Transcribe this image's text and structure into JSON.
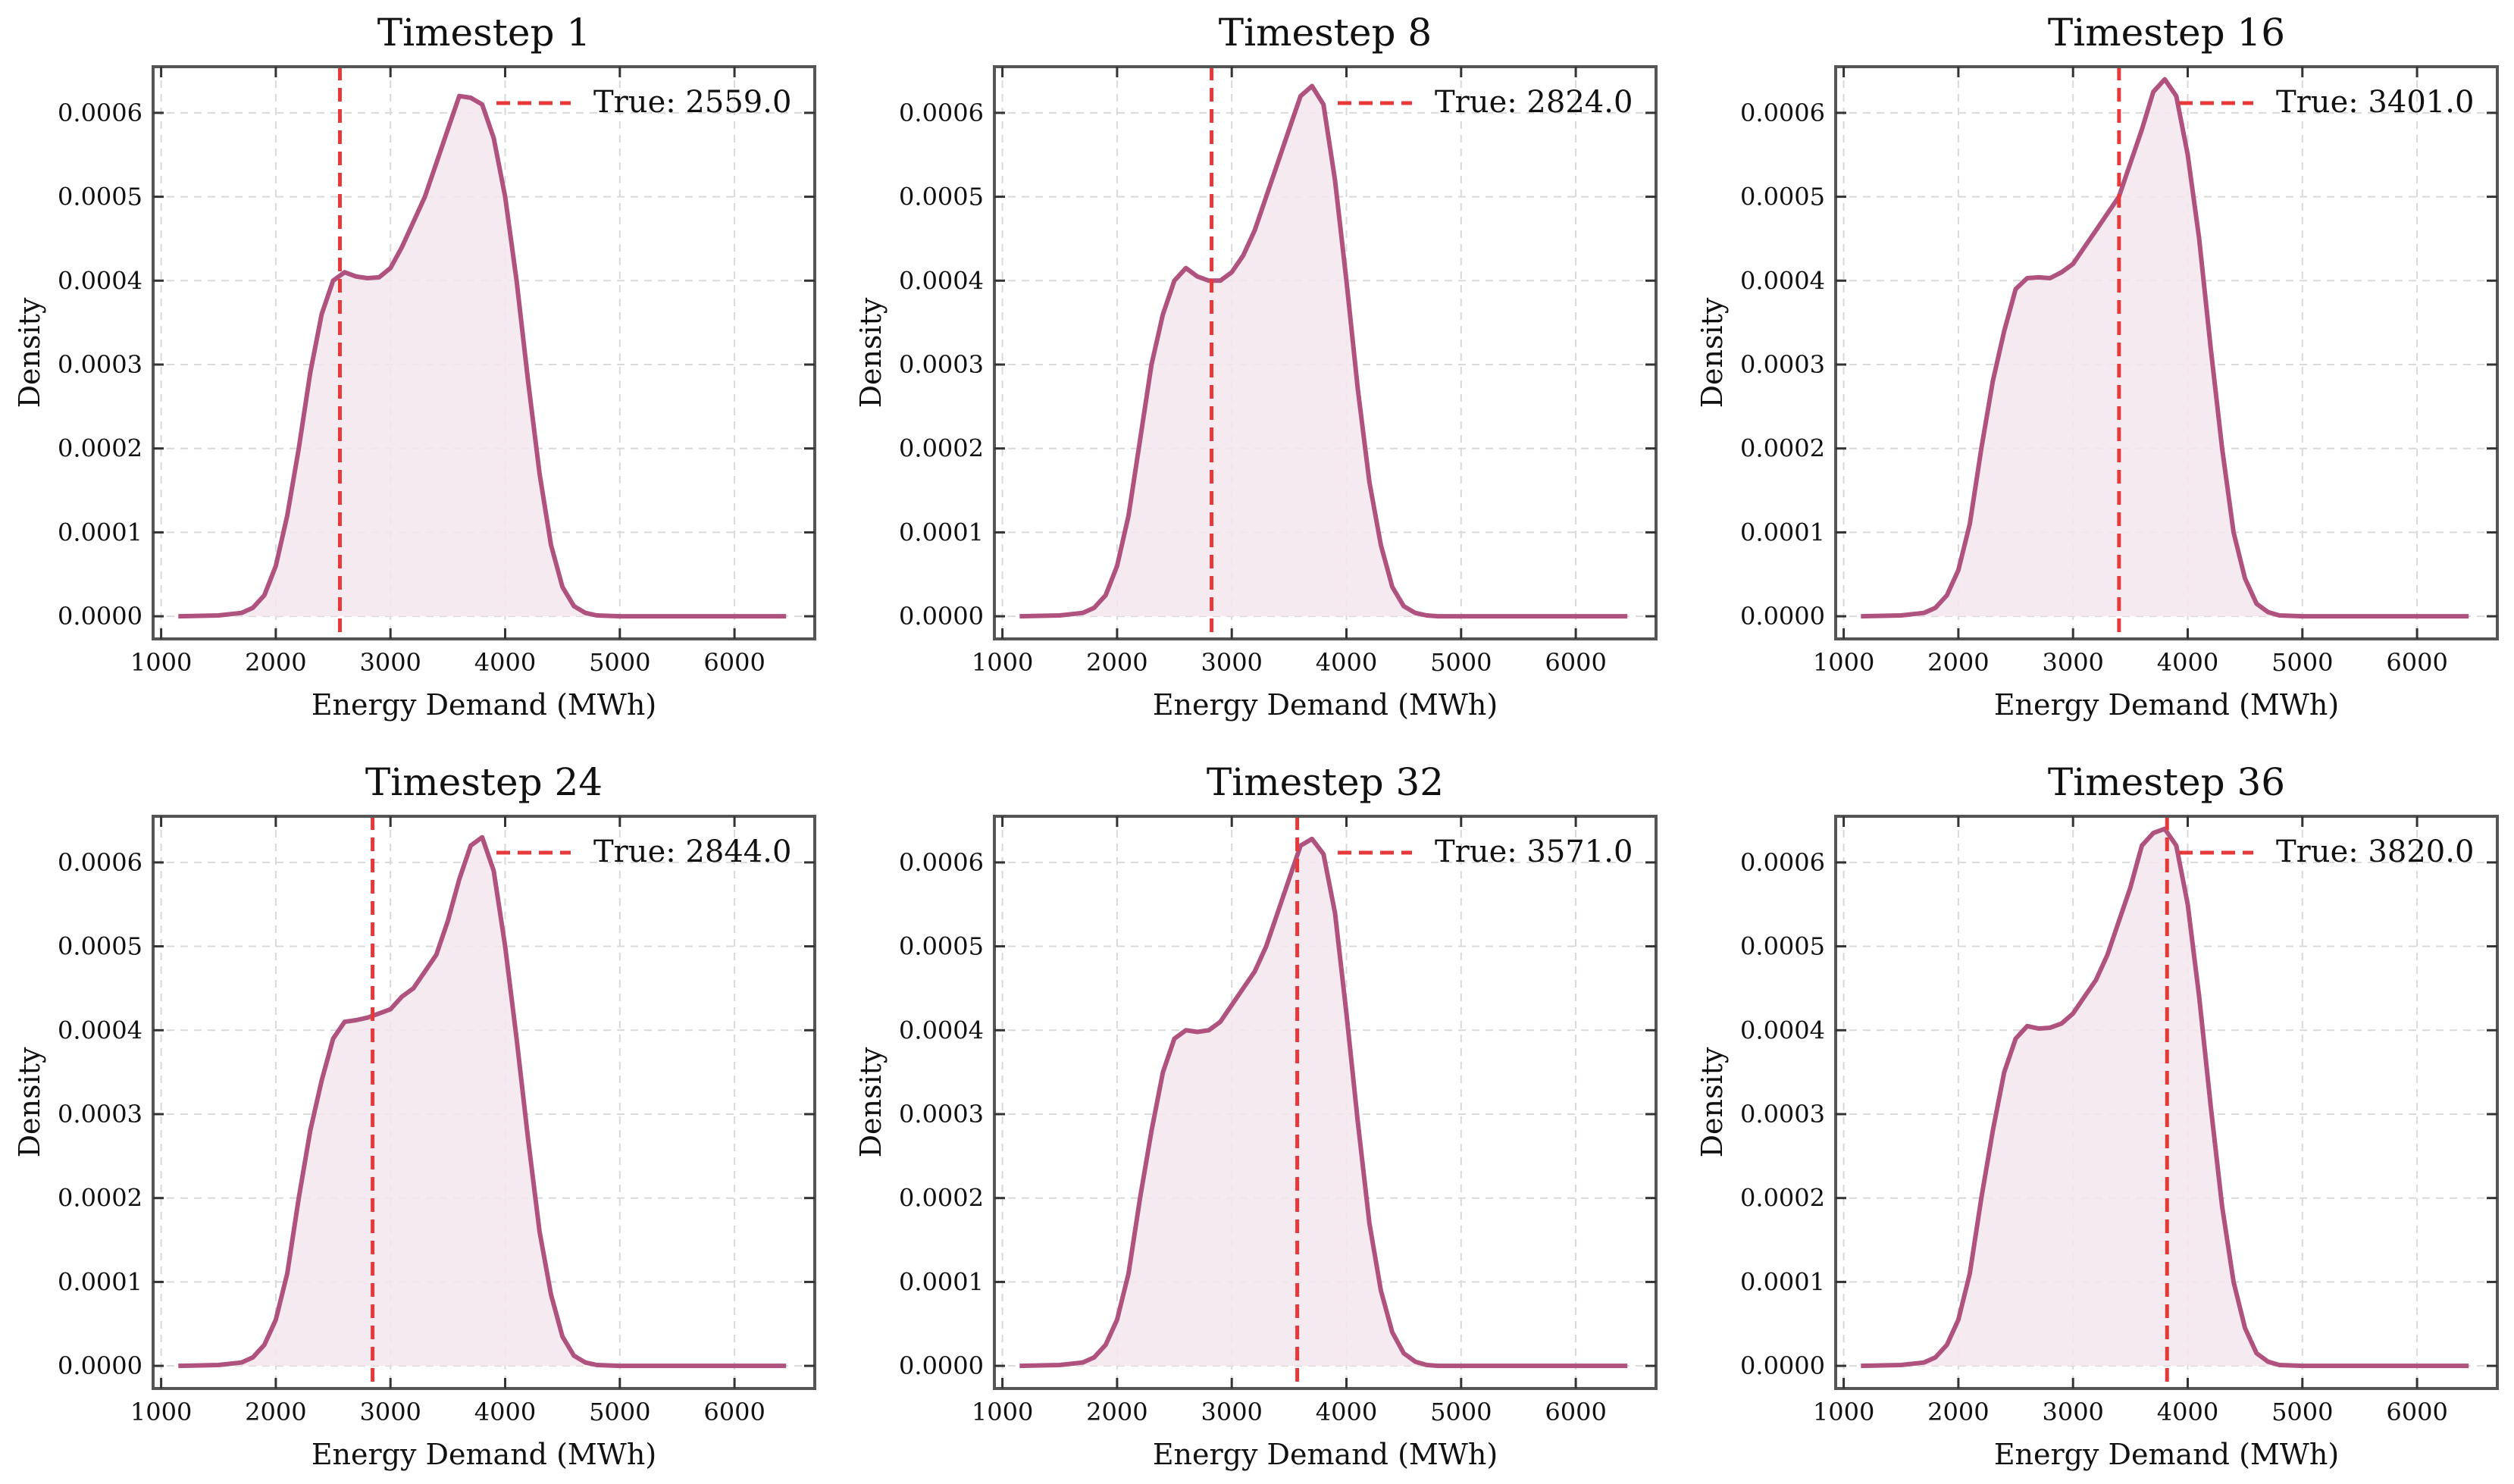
{
  "chart_data": [
    {
      "type": "area",
      "title": "Timestep 1",
      "xlabel": "Energy Demand (MWh)",
      "ylabel": "Density",
      "xlim": [
        930,
        6700
      ],
      "ylim": [
        -2.7e-05,
        0.000655
      ],
      "xticks": [
        1000,
        2000,
        3000,
        4000,
        5000,
        6000
      ],
      "yticks": [
        0.0,
        0.0001,
        0.0002,
        0.0003,
        0.0004,
        0.0005,
        0.0006
      ],
      "ytick_labels": [
        "0.0000",
        "0.0001",
        "0.0002",
        "0.0003",
        "0.0004",
        "0.0005",
        "0.0006"
      ],
      "grid": true,
      "legend": "top-right",
      "true_value": 2559.0,
      "true_label": "True: 2559.0",
      "colors": {
        "curve": "#b0527e",
        "fill": "#f5e6ee",
        "true_line": "#e8393a"
      },
      "x": [
        1150,
        1500,
        1700,
        1800,
        1900,
        2000,
        2100,
        2200,
        2300,
        2400,
        2500,
        2600,
        2700,
        2800,
        2900,
        3000,
        3100,
        3200,
        3300,
        3400,
        3500,
        3600,
        3700,
        3800,
        3900,
        4000,
        4100,
        4200,
        4300,
        4400,
        4500,
        4600,
        4700,
        4800,
        5000,
        5500,
        6450
      ],
      "y": [
        0,
        1e-06,
        4e-06,
        1e-05,
        2.5e-05,
        6e-05,
        0.00012,
        0.0002,
        0.00029,
        0.00036,
        0.0004,
        0.00041,
        0.000405,
        0.000403,
        0.000404,
        0.000415,
        0.00044,
        0.00047,
        0.0005,
        0.00054,
        0.00058,
        0.00062,
        0.000618,
        0.00061,
        0.00057,
        0.0005,
        0.0004,
        0.00028,
        0.00017,
        8.5e-05,
        3.5e-05,
        1.2e-05,
        4e-06,
        1e-06,
        0,
        0,
        0
      ]
    },
    {
      "type": "area",
      "title": "Timestep 8",
      "xlabel": "Energy Demand (MWh)",
      "ylabel": "Density",
      "xlim": [
        930,
        6700
      ],
      "ylim": [
        -2.7e-05,
        0.000655
      ],
      "xticks": [
        1000,
        2000,
        3000,
        4000,
        5000,
        6000
      ],
      "yticks": [
        0.0,
        0.0001,
        0.0002,
        0.0003,
        0.0004,
        0.0005,
        0.0006
      ],
      "ytick_labels": [
        "0.0000",
        "0.0001",
        "0.0002",
        "0.0003",
        "0.0004",
        "0.0005",
        "0.0006"
      ],
      "grid": true,
      "legend": "top-right",
      "true_value": 2824.0,
      "true_label": "True: 2824.0",
      "colors": {
        "curve": "#b0527e",
        "fill": "#f5e6ee",
        "true_line": "#e8393a"
      },
      "x": [
        1150,
        1500,
        1700,
        1800,
        1900,
        2000,
        2100,
        2200,
        2300,
        2400,
        2500,
        2600,
        2700,
        2800,
        2900,
        3000,
        3100,
        3200,
        3300,
        3400,
        3500,
        3600,
        3700,
        3800,
        3900,
        4000,
        4100,
        4200,
        4300,
        4400,
        4500,
        4600,
        4700,
        4800,
        5000,
        5500,
        6450
      ],
      "y": [
        0,
        1e-06,
        4e-06,
        1e-05,
        2.5e-05,
        6e-05,
        0.00012,
        0.00021,
        0.0003,
        0.00036,
        0.0004,
        0.000415,
        0.000405,
        0.0004,
        0.0004,
        0.00041,
        0.00043,
        0.00046,
        0.0005,
        0.00054,
        0.00058,
        0.00062,
        0.000632,
        0.00061,
        0.00052,
        0.0004,
        0.00027,
        0.00016,
        8.5e-05,
        3.5e-05,
        1.2e-05,
        4e-06,
        1e-06,
        0,
        0,
        0,
        0
      ]
    },
    {
      "type": "area",
      "title": "Timestep 16",
      "xlabel": "Energy Demand (MWh)",
      "ylabel": "Density",
      "xlim": [
        930,
        6700
      ],
      "ylim": [
        -2.7e-05,
        0.000655
      ],
      "xticks": [
        1000,
        2000,
        3000,
        4000,
        5000,
        6000
      ],
      "yticks": [
        0.0,
        0.0001,
        0.0002,
        0.0003,
        0.0004,
        0.0005,
        0.0006
      ],
      "ytick_labels": [
        "0.0000",
        "0.0001",
        "0.0002",
        "0.0003",
        "0.0004",
        "0.0005",
        "0.0006"
      ],
      "grid": true,
      "legend": "top-right",
      "true_value": 3401.0,
      "true_label": "True: 3401.0",
      "colors": {
        "curve": "#b0527e",
        "fill": "#f5e6ee",
        "true_line": "#e8393a"
      },
      "x": [
        1150,
        1500,
        1700,
        1800,
        1900,
        2000,
        2100,
        2200,
        2300,
        2400,
        2500,
        2600,
        2700,
        2800,
        2900,
        3000,
        3100,
        3200,
        3300,
        3400,
        3500,
        3600,
        3700,
        3800,
        3900,
        4000,
        4100,
        4200,
        4300,
        4400,
        4500,
        4600,
        4700,
        4800,
        5000,
        5500,
        6450
      ],
      "y": [
        0,
        1e-06,
        4e-06,
        1e-05,
        2.5e-05,
        5.5e-05,
        0.00011,
        0.0002,
        0.00028,
        0.00034,
        0.00039,
        0.000403,
        0.000404,
        0.000403,
        0.00041,
        0.00042,
        0.00044,
        0.00046,
        0.00048,
        0.0005,
        0.00054,
        0.00058,
        0.000625,
        0.00064,
        0.00062,
        0.00055,
        0.00045,
        0.00032,
        0.0002,
        0.0001,
        4.5e-05,
        1.5e-05,
        5e-06,
        1e-06,
        0,
        0,
        0
      ]
    },
    {
      "type": "area",
      "title": "Timestep 24",
      "xlabel": "Energy Demand (MWh)",
      "ylabel": "Density",
      "xlim": [
        930,
        6700
      ],
      "ylim": [
        -2.7e-05,
        0.000655
      ],
      "xticks": [
        1000,
        2000,
        3000,
        4000,
        5000,
        6000
      ],
      "yticks": [
        0.0,
        0.0001,
        0.0002,
        0.0003,
        0.0004,
        0.0005,
        0.0006
      ],
      "ytick_labels": [
        "0.0000",
        "0.0001",
        "0.0002",
        "0.0003",
        "0.0004",
        "0.0005",
        "0.0006"
      ],
      "grid": true,
      "legend": "top-right",
      "true_value": 2844.0,
      "true_label": "True: 2844.0",
      "colors": {
        "curve": "#b0527e",
        "fill": "#f5e6ee",
        "true_line": "#e8393a"
      },
      "x": [
        1150,
        1500,
        1700,
        1800,
        1900,
        2000,
        2100,
        2200,
        2300,
        2400,
        2500,
        2600,
        2700,
        2800,
        2900,
        3000,
        3100,
        3200,
        3300,
        3400,
        3500,
        3600,
        3700,
        3800,
        3900,
        4000,
        4100,
        4200,
        4300,
        4400,
        4500,
        4600,
        4700,
        4800,
        5000,
        5500,
        6450
      ],
      "y": [
        0,
        1e-06,
        4e-06,
        1e-05,
        2.5e-05,
        5.5e-05,
        0.00011,
        0.0002,
        0.00028,
        0.00034,
        0.00039,
        0.00041,
        0.000412,
        0.000415,
        0.00042,
        0.000425,
        0.00044,
        0.00045,
        0.00047,
        0.00049,
        0.00053,
        0.00058,
        0.00062,
        0.00063,
        0.00059,
        0.0005,
        0.00039,
        0.00027,
        0.00016,
        8.5e-05,
        3.5e-05,
        1.2e-05,
        4e-06,
        1e-06,
        0,
        0,
        0
      ]
    },
    {
      "type": "area",
      "title": "Timestep 32",
      "xlabel": "Energy Demand (MWh)",
      "ylabel": "Density",
      "xlim": [
        930,
        6700
      ],
      "ylim": [
        -2.7e-05,
        0.000655
      ],
      "xticks": [
        1000,
        2000,
        3000,
        4000,
        5000,
        6000
      ],
      "yticks": [
        0.0,
        0.0001,
        0.0002,
        0.0003,
        0.0004,
        0.0005,
        0.0006
      ],
      "ytick_labels": [
        "0.0000",
        "0.0001",
        "0.0002",
        "0.0003",
        "0.0004",
        "0.0005",
        "0.0006"
      ],
      "grid": true,
      "legend": "top-right",
      "true_value": 3571.0,
      "true_label": "True: 3571.0",
      "colors": {
        "curve": "#b0527e",
        "fill": "#f5e6ee",
        "true_line": "#e8393a"
      },
      "x": [
        1150,
        1500,
        1700,
        1800,
        1900,
        2000,
        2100,
        2200,
        2300,
        2400,
        2500,
        2600,
        2700,
        2800,
        2900,
        3000,
        3100,
        3200,
        3300,
        3400,
        3500,
        3600,
        3700,
        3800,
        3900,
        4000,
        4100,
        4200,
        4300,
        4400,
        4500,
        4600,
        4700,
        4800,
        5000,
        5500,
        6450
      ],
      "y": [
        0,
        1e-06,
        4e-06,
        1e-05,
        2.5e-05,
        5.5e-05,
        0.00011,
        0.0002,
        0.00028,
        0.00035,
        0.00039,
        0.0004,
        0.000398,
        0.0004,
        0.00041,
        0.00043,
        0.00045,
        0.00047,
        0.0005,
        0.00054,
        0.00058,
        0.00062,
        0.000628,
        0.00061,
        0.00054,
        0.00042,
        0.00029,
        0.00017,
        9e-05,
        4e-05,
        1.5e-05,
        5e-06,
        1e-06,
        0,
        0,
        0,
        0
      ]
    },
    {
      "type": "area",
      "title": "Timestep 36",
      "xlabel": "Energy Demand (MWh)",
      "ylabel": "Density",
      "xlim": [
        930,
        6700
      ],
      "ylim": [
        -2.7e-05,
        0.000655
      ],
      "xticks": [
        1000,
        2000,
        3000,
        4000,
        5000,
        6000
      ],
      "yticks": [
        0.0,
        0.0001,
        0.0002,
        0.0003,
        0.0004,
        0.0005,
        0.0006
      ],
      "ytick_labels": [
        "0.0000",
        "0.0001",
        "0.0002",
        "0.0003",
        "0.0004",
        "0.0005",
        "0.0006"
      ],
      "grid": true,
      "legend": "top-right",
      "true_value": 3820.0,
      "true_label": "True: 3820.0",
      "colors": {
        "curve": "#b0527e",
        "fill": "#f5e6ee",
        "true_line": "#e8393a"
      },
      "x": [
        1150,
        1500,
        1700,
        1800,
        1900,
        2000,
        2100,
        2200,
        2300,
        2400,
        2500,
        2600,
        2700,
        2800,
        2900,
        3000,
        3100,
        3200,
        3300,
        3400,
        3500,
        3600,
        3700,
        3800,
        3900,
        4000,
        4100,
        4200,
        4300,
        4400,
        4500,
        4600,
        4700,
        4800,
        5000,
        5500,
        6450
      ],
      "y": [
        0,
        1e-06,
        4e-06,
        1e-05,
        2.5e-05,
        5.5e-05,
        0.00011,
        0.0002,
        0.00028,
        0.00035,
        0.00039,
        0.000405,
        0.000402,
        0.000403,
        0.000408,
        0.00042,
        0.00044,
        0.00046,
        0.00049,
        0.00053,
        0.00057,
        0.00062,
        0.000635,
        0.00064,
        0.00062,
        0.00055,
        0.00044,
        0.00031,
        0.00019,
        0.0001,
        4.5e-05,
        1.5e-05,
        5e-06,
        1e-06,
        0,
        0,
        0
      ]
    }
  ]
}
